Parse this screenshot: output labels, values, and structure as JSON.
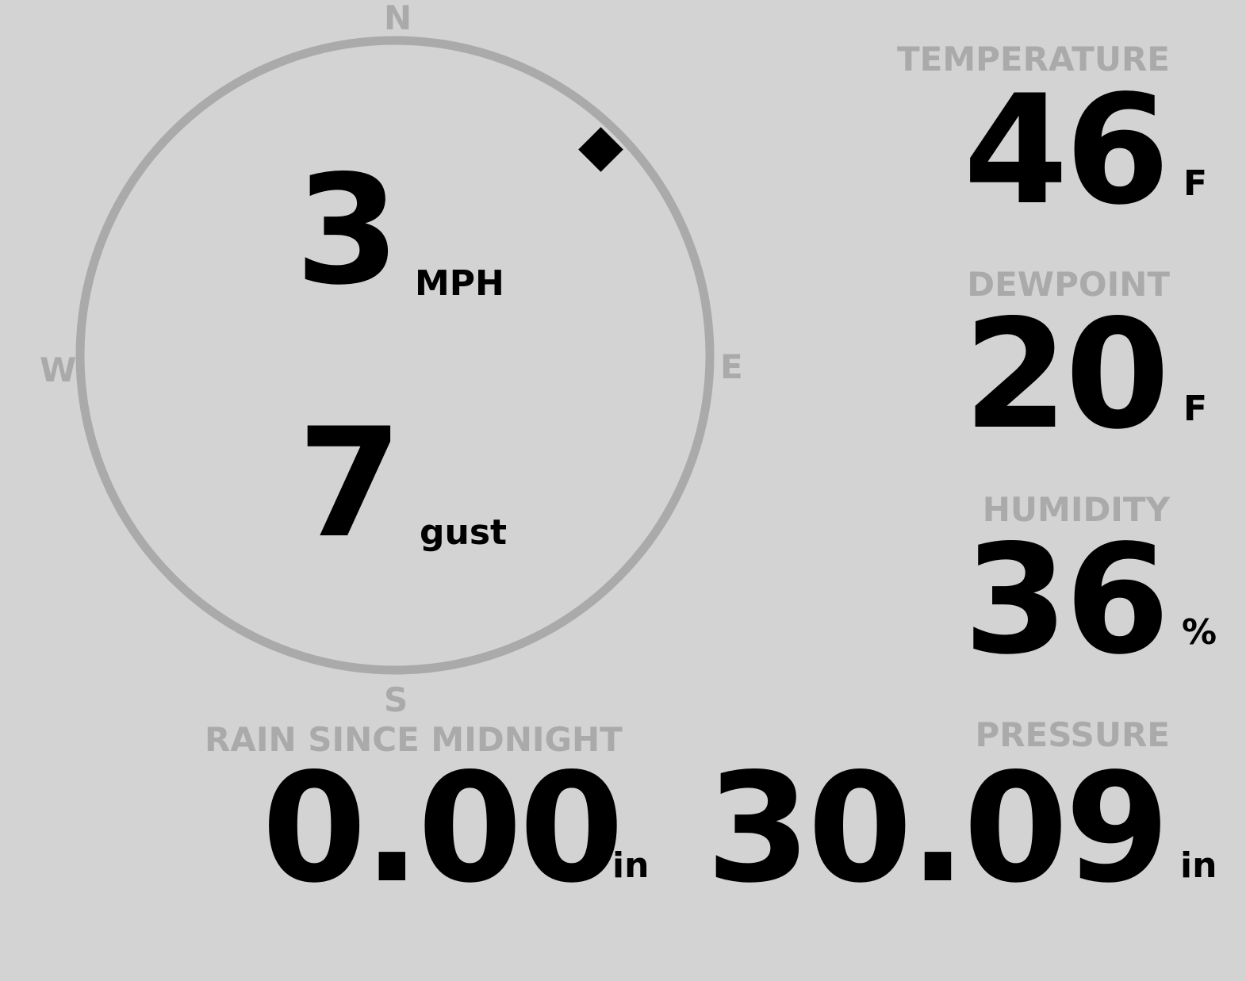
{
  "compass": {
    "north": "N",
    "south": "S",
    "east": "E",
    "west": "W",
    "direction_degrees": 45,
    "ring_color": "#aaaaaa"
  },
  "wind": {
    "speed": "3",
    "speed_unit": "MPH",
    "gust": "7",
    "gust_unit": "gust"
  },
  "temperature": {
    "label": "TEMPERATURE",
    "value": "46",
    "unit": "F"
  },
  "dewpoint": {
    "label": "DEWPOINT",
    "value": "20",
    "unit": "F"
  },
  "humidity": {
    "label": "HUMIDITY",
    "value": "36",
    "unit": "%"
  },
  "rain": {
    "label": "RAIN SINCE MIDNIGHT",
    "value": "0.00",
    "unit": "in"
  },
  "pressure": {
    "label": "PRESSURE",
    "value": "30.09",
    "unit": "in"
  },
  "colors": {
    "background": "#d3d3d3",
    "label": "#aaaaaa",
    "value": "#000000"
  }
}
